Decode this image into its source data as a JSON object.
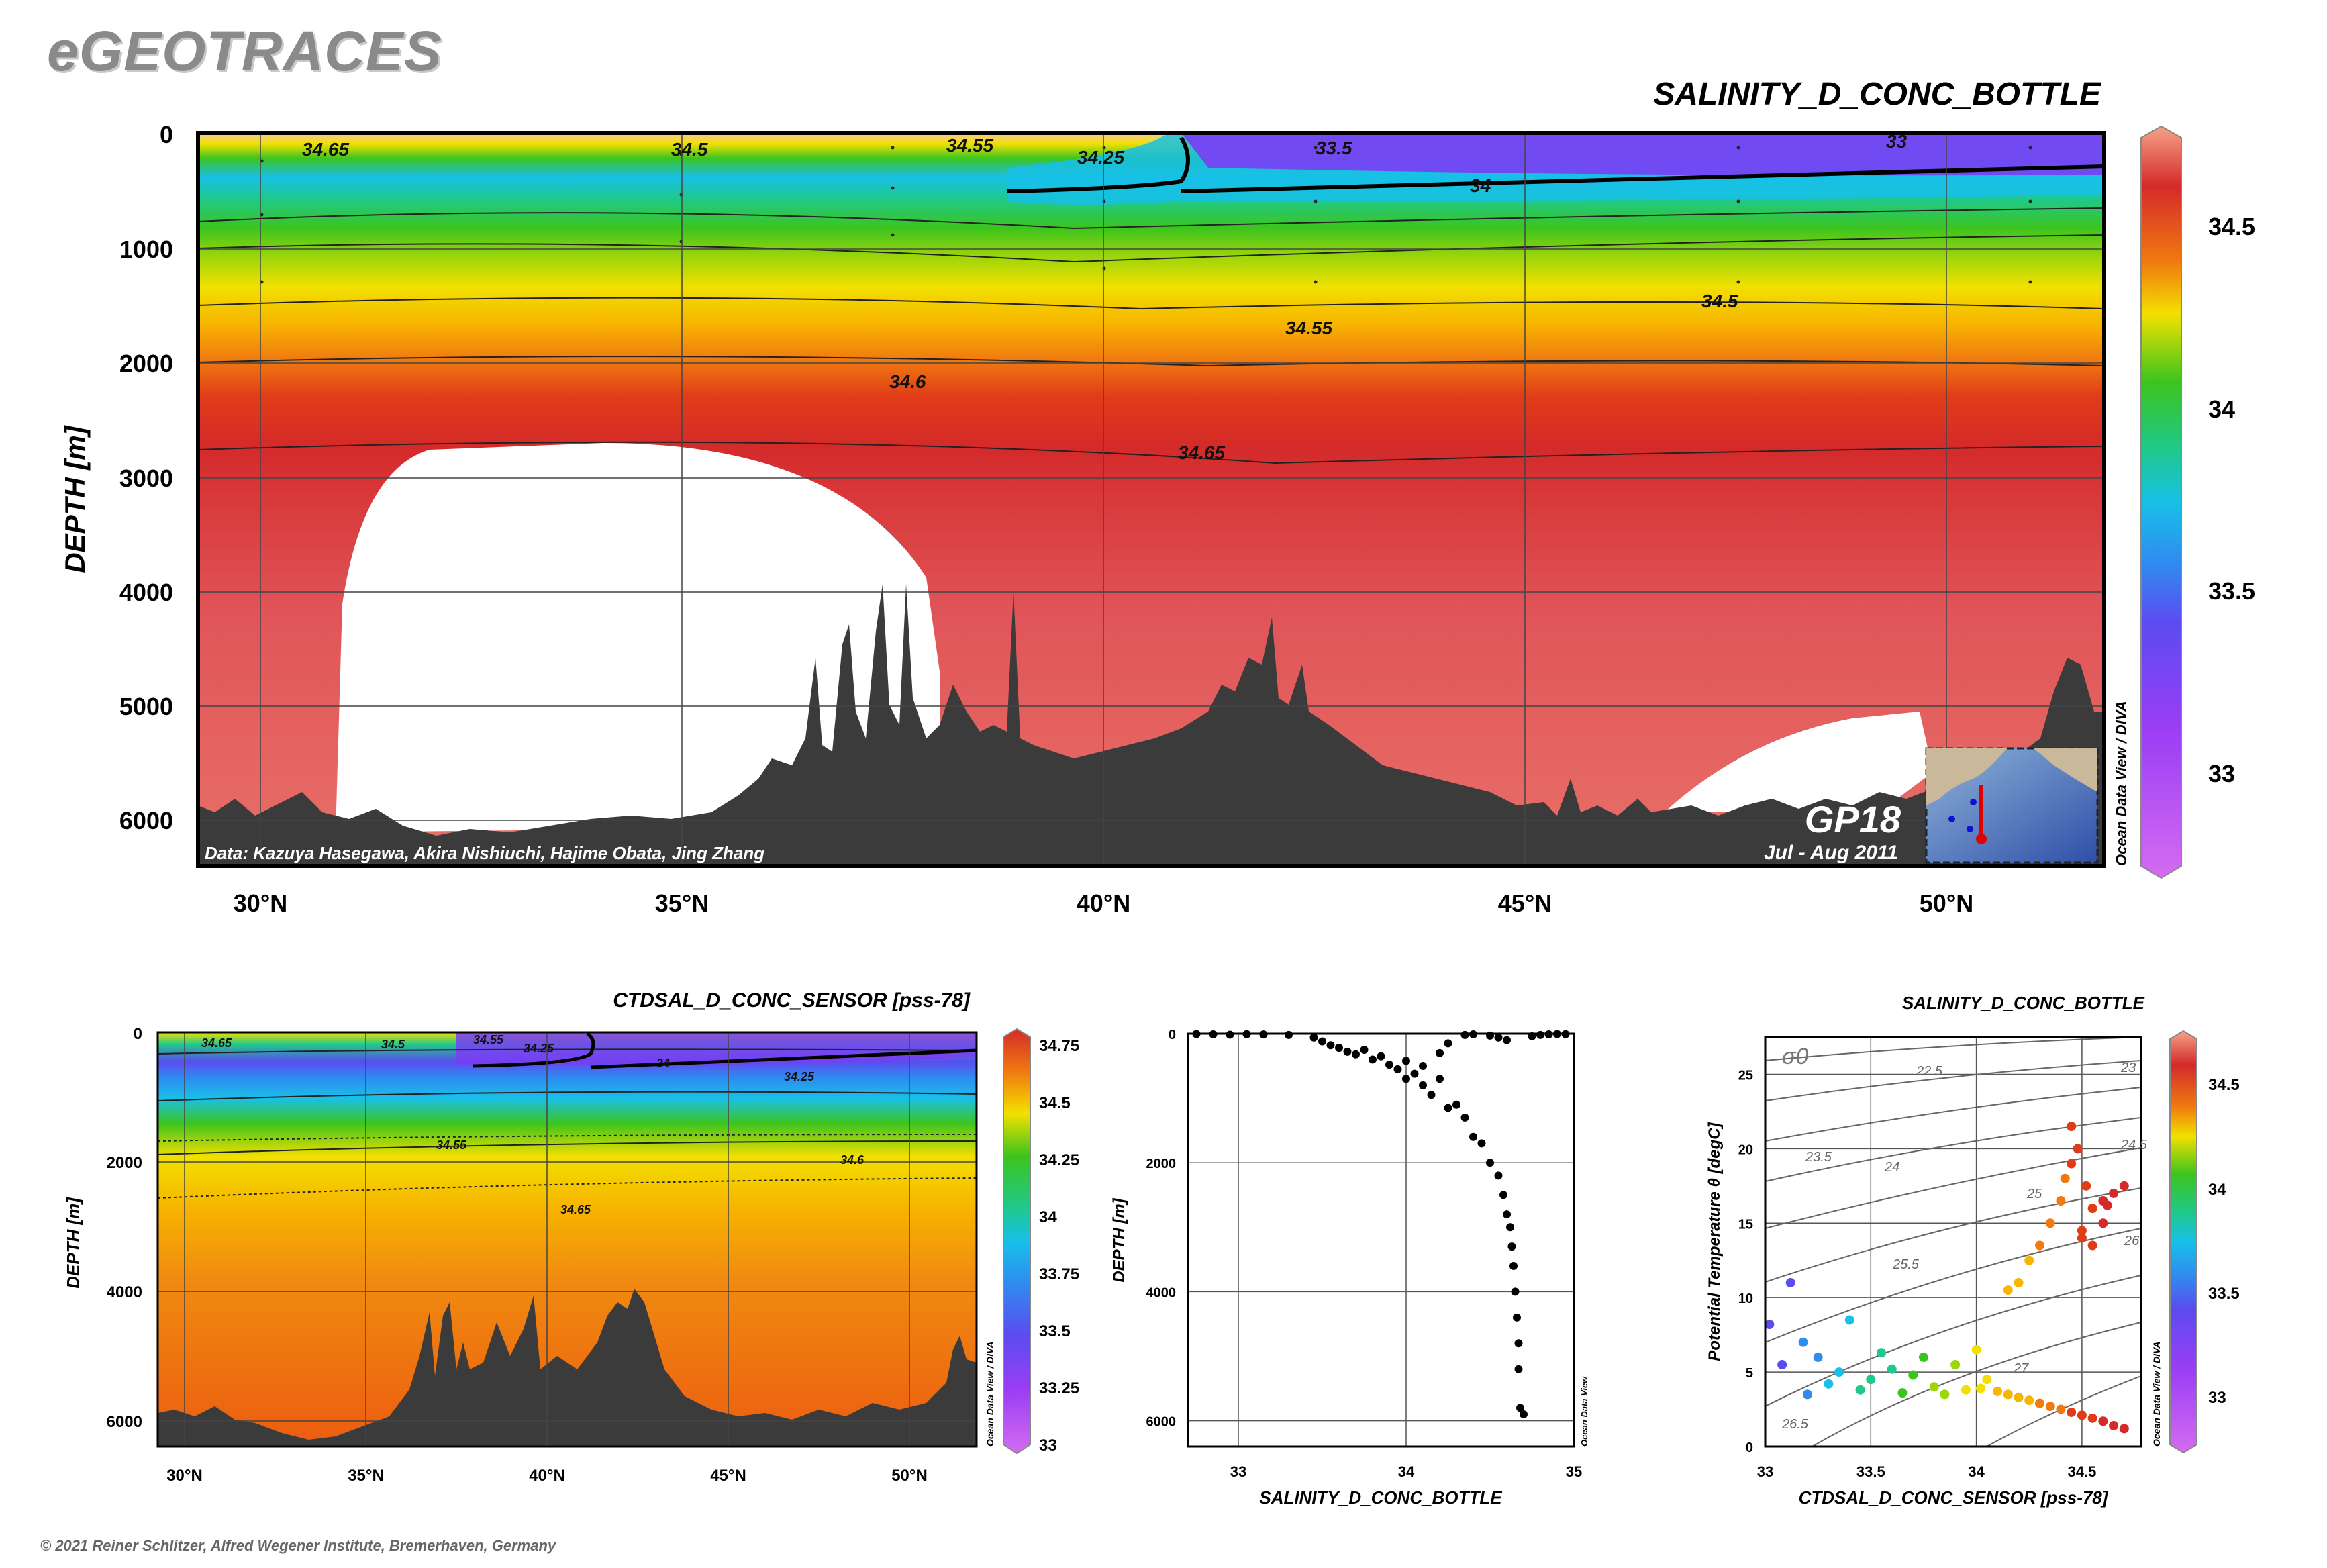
{
  "header": {
    "logo": "eGEOTRACES",
    "copyright": "© 2021 Reiner Schlitzer, Alfred Wegener Institute, Bremerhaven, Germany"
  },
  "colors": {
    "colormap": [
      "#d46cf0",
      "#9a3df5",
      "#5b4cf0",
      "#2f8cf0",
      "#18c0e8",
      "#1fc98a",
      "#3cc41e",
      "#9ed60a",
      "#f2e000",
      "#f7b500",
      "#f07a10",
      "#e03c18",
      "#d42a2a",
      "#f4a288"
    ],
    "terrain": "#3b3b3b",
    "background": "#ffffff"
  },
  "chart_data": [
    {
      "type": "heatmap",
      "title": "SALINITY_D_CONC_BOTTLE",
      "ylabel": "DEPTH [m]",
      "xlabel": "",
      "x_ticks": [
        "30°N",
        "35°N",
        "40°N",
        "45°N",
        "50°N"
      ],
      "y_ticks": [
        "0",
        "1000",
        "2000",
        "3000",
        "4000",
        "5000",
        "6000"
      ],
      "xlim": [
        29.2,
        51.9
      ],
      "ylim": [
        6400,
        0
      ],
      "colorbar_ticks": [
        "34.5",
        "34",
        "33.5",
        "33"
      ],
      "colorbar_range": [
        32.8,
        34.75
      ],
      "contour_labels": [
        "34.65",
        "34.5",
        "34.55",
        "34.25",
        "33.5",
        "33",
        "34",
        "34.5",
        "34.55",
        "34.6",
        "34.65"
      ],
      "section_label": "GP18",
      "dates": "Jul - Aug 2011",
      "credits": "Data: Kazuya Hasegawa, Akira Nishiuchi, Hajime Obata, Jing Zhang",
      "watermark": "Ocean Data View / DIVA"
    },
    {
      "type": "heatmap",
      "title": "CTDSAL_D_CONC_SENSOR [pss-78]",
      "ylabel": "DEPTH [m]",
      "xlabel": "",
      "x_ticks": [
        "30°N",
        "35°N",
        "40°N",
        "45°N",
        "50°N"
      ],
      "y_ticks": [
        "0",
        "2000",
        "4000",
        "6000"
      ],
      "xlim": [
        29.2,
        52
      ],
      "ylim": [
        6400,
        0
      ],
      "colorbar_ticks": [
        "34.75",
        "34.5",
        "34.25",
        "34",
        "33.75",
        "33.5",
        "33.25",
        "33"
      ],
      "colorbar_range": [
        33,
        34.75
      ],
      "contour_labels": [
        "34.65",
        "34.5",
        "34.55",
        "34.25",
        "34",
        "34.25",
        "34.55",
        "34.6",
        "34.65"
      ],
      "watermark": "Ocean Data View / DIVA"
    },
    {
      "type": "scatter",
      "title": "",
      "xlabel": "SALINITY_D_CONC_BOTTLE",
      "ylabel": "DEPTH [m]",
      "x_ticks": [
        "33",
        "34",
        "35"
      ],
      "y_ticks": [
        "0",
        "2000",
        "4000",
        "6000"
      ],
      "xlim": [
        32.7,
        35
      ],
      "ylim": [
        6400,
        0
      ],
      "points": [
        [
          32.75,
          5
        ],
        [
          32.85,
          10
        ],
        [
          32.95,
          15
        ],
        [
          33.05,
          8
        ],
        [
          33.15,
          12
        ],
        [
          33.3,
          20
        ],
        [
          33.45,
          60
        ],
        [
          33.5,
          120
        ],
        [
          33.55,
          180
        ],
        [
          33.6,
          220
        ],
        [
          33.65,
          280
        ],
        [
          33.7,
          320
        ],
        [
          33.75,
          250
        ],
        [
          33.8,
          400
        ],
        [
          33.85,
          350
        ],
        [
          33.9,
          480
        ],
        [
          33.95,
          550
        ],
        [
          34.0,
          420
        ],
        [
          34.0,
          700
        ],
        [
          34.05,
          620
        ],
        [
          34.1,
          800
        ],
        [
          34.1,
          500
        ],
        [
          34.15,
          950
        ],
        [
          34.2,
          300
        ],
        [
          34.2,
          700
        ],
        [
          34.25,
          150
        ],
        [
          34.25,
          1150
        ],
        [
          34.3,
          1100
        ],
        [
          34.35,
          20
        ],
        [
          34.35,
          1300
        ],
        [
          34.4,
          10
        ],
        [
          34.4,
          1600
        ],
        [
          34.45,
          1700
        ],
        [
          34.5,
          30
        ],
        [
          34.5,
          2000
        ],
        [
          34.55,
          60
        ],
        [
          34.55,
          2200
        ],
        [
          34.58,
          2500
        ],
        [
          34.6,
          100
        ],
        [
          34.6,
          2800
        ],
        [
          34.62,
          3000
        ],
        [
          34.63,
          3300
        ],
        [
          34.64,
          3600
        ],
        [
          34.65,
          4000
        ],
        [
          34.66,
          4400
        ],
        [
          34.67,
          4800
        ],
        [
          34.67,
          5200
        ],
        [
          34.68,
          5800
        ],
        [
          34.7,
          5900
        ],
        [
          34.75,
          40
        ],
        [
          34.8,
          20
        ],
        [
          34.85,
          10
        ],
        [
          34.9,
          5
        ],
        [
          34.95,
          8
        ]
      ],
      "watermark": "Ocean Data View"
    },
    {
      "type": "scatter",
      "title": "SALINITY_D_CONC_BOTTLE",
      "xlabel": "CTDSAL_D_CONC_SENSOR [pss-78]",
      "ylabel": "Potential Temperature θ [degC]",
      "x_ticks": [
        "33",
        "33.5",
        "34",
        "34.5"
      ],
      "y_ticks": [
        "0",
        "5",
        "10",
        "15",
        "20",
        "25"
      ],
      "xlim": [
        33,
        34.78
      ],
      "ylim": [
        0,
        27.5
      ],
      "isopycnal_label": "σ0",
      "isopycnals": [
        "22.5",
        "23",
        "23.5",
        "24",
        "24.5",
        "25",
        "25.5",
        "26",
        "26.5",
        "27"
      ],
      "colorbar_ticks": [
        "34.5",
        "34",
        "33.5",
        "33"
      ],
      "colorbar_range": [
        32.8,
        34.75
      ],
      "points": [
        [
          33.02,
          8.2
        ],
        [
          33.08,
          5.5
        ],
        [
          33.12,
          11.0
        ],
        [
          33.18,
          7.0
        ],
        [
          33.2,
          3.5
        ],
        [
          33.25,
          6.0
        ],
        [
          33.3,
          4.2
        ],
        [
          33.35,
          5.0
        ],
        [
          33.4,
          8.5
        ],
        [
          33.45,
          3.8
        ],
        [
          33.5,
          4.5
        ],
        [
          33.55,
          6.3
        ],
        [
          33.6,
          5.2
        ],
        [
          33.65,
          3.6
        ],
        [
          33.7,
          4.8
        ],
        [
          33.75,
          6.0
        ],
        [
          33.8,
          4.0
        ],
        [
          33.85,
          3.5
        ],
        [
          33.9,
          5.5
        ],
        [
          33.95,
          3.8
        ],
        [
          34.0,
          6.5
        ],
        [
          34.02,
          3.9
        ],
        [
          34.05,
          4.5
        ],
        [
          34.1,
          3.7
        ],
        [
          34.15,
          3.5
        ],
        [
          34.2,
          3.3
        ],
        [
          34.25,
          3.1
        ],
        [
          34.3,
          2.9
        ],
        [
          34.35,
          2.7
        ],
        [
          34.4,
          2.5
        ],
        [
          34.45,
          2.3
        ],
        [
          34.5,
          2.1
        ],
        [
          34.55,
          1.9
        ],
        [
          34.6,
          1.7
        ],
        [
          34.65,
          1.4
        ],
        [
          34.7,
          1.2
        ],
        [
          34.15,
          10.5
        ],
        [
          34.2,
          11.0
        ],
        [
          34.25,
          12.5
        ],
        [
          34.3,
          13.5
        ],
        [
          34.35,
          15.0
        ],
        [
          34.4,
          16.5
        ],
        [
          34.42,
          18.0
        ],
        [
          34.45,
          19.0
        ],
        [
          34.48,
          20.0
        ],
        [
          34.52,
          17.5
        ],
        [
          34.55,
          16.0
        ],
        [
          34.6,
          16.5
        ],
        [
          34.65,
          17.0
        ],
        [
          34.7,
          17.5
        ],
        [
          34.55,
          13.5
        ],
        [
          34.5,
          14.5
        ],
        [
          34.6,
          15.0
        ],
        [
          34.45,
          21.5
        ],
        [
          34.5,
          14.0
        ],
        [
          34.62,
          16.2
        ]
      ],
      "watermark": "Ocean Data View / DIVA"
    }
  ]
}
